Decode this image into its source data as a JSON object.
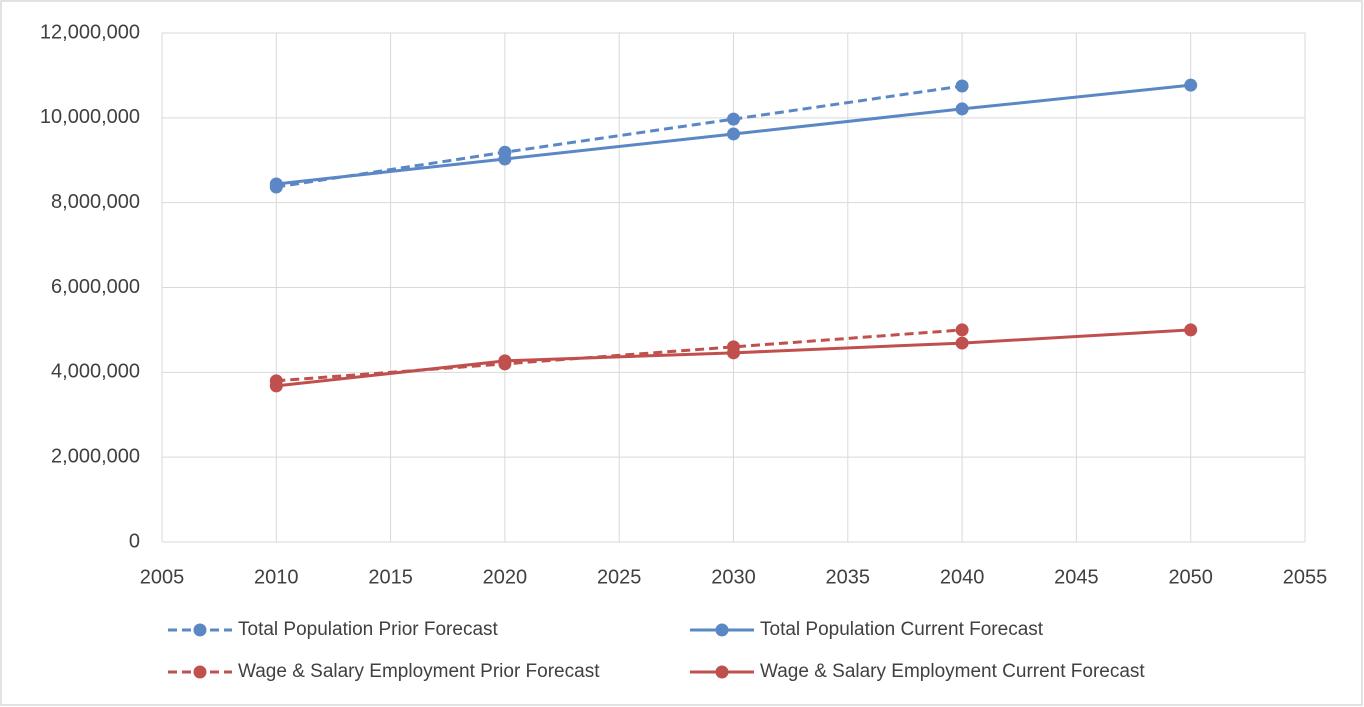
{
  "chart_data": {
    "type": "line",
    "x": [
      2010,
      2020,
      2030,
      2040,
      2050
    ],
    "series": [
      {
        "name": "Total Population Prior Forecast",
        "color": "#5b87c5",
        "dashed": true,
        "values": [
          8370000,
          9190000,
          9970000,
          10750000,
          null
        ]
      },
      {
        "name": "Total Population Current Forecast",
        "color": "#5b87c5",
        "dashed": false,
        "values": [
          8440000,
          9030000,
          9620000,
          10210000,
          10770000
        ]
      },
      {
        "name": "Wage & Salary Employment Prior Forecast",
        "color": "#c0504d",
        "dashed": true,
        "values": [
          3800000,
          4200000,
          4600000,
          5000000,
          null
        ]
      },
      {
        "name": "Wage & Salary Employment Current Forecast",
        "color": "#c0504d",
        "dashed": false,
        "values": [
          3680000,
          4270000,
          4460000,
          4690000,
          5000000
        ]
      }
    ],
    "xlim": [
      2005,
      2055
    ],
    "xticks": [
      2005,
      2010,
      2015,
      2020,
      2025,
      2030,
      2035,
      2040,
      2045,
      2050,
      2055
    ],
    "ylim": [
      0,
      12000000
    ],
    "yticks": [
      0,
      {
        "value": 2000000,
        "label": "2,000,000"
      },
      {
        "value": 4000000,
        "label": "4,000,000"
      },
      {
        "value": 6000000,
        "label": "6,000,000"
      },
      {
        "value": 8000000,
        "label": "8,000,000"
      },
      {
        "value": 10000000,
        "label": "10,000,000"
      },
      {
        "value": 12000000,
        "label": "12,000,000"
      }
    ],
    "grid": true,
    "legend": "bottom"
  }
}
